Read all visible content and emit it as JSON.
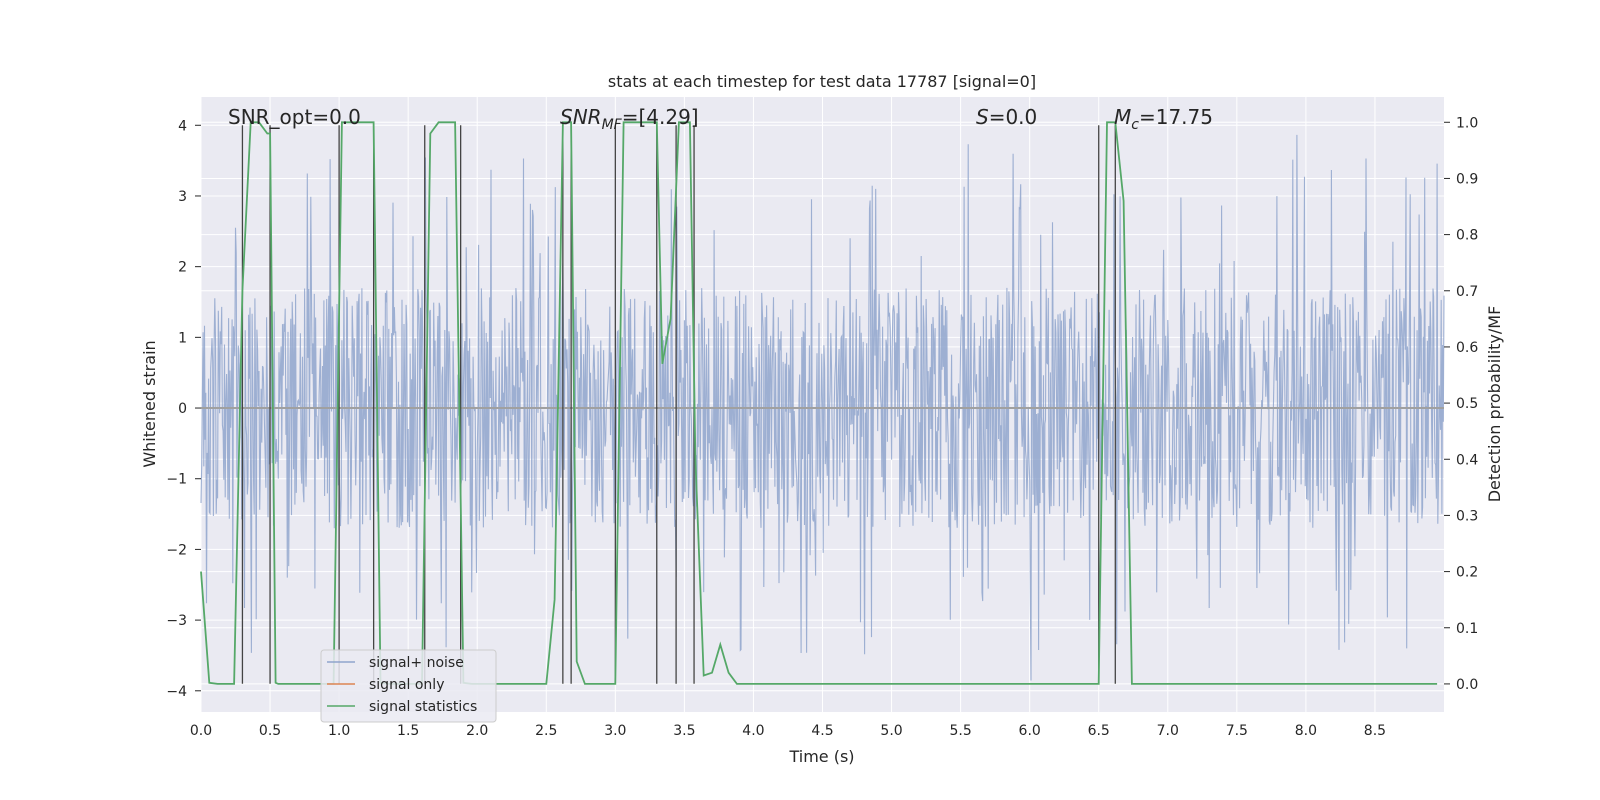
{
  "chart_data": {
    "type": "line",
    "title": "stats at each timestep for test data 17787 [signal=0]",
    "xlabel": "Time (s)",
    "ylabel": "Whitened strain",
    "ylabel_right": "Detection probability/MF",
    "xlim": [
      0,
      9.0
    ],
    "ylim": [
      -4.3,
      4.4
    ],
    "ylim_right": [
      -0.05,
      1.045
    ],
    "x_ticks": [
      "0.0",
      "0.5",
      "1.0",
      "1.5",
      "2.0",
      "2.5",
      "3.0",
      "3.5",
      "4.0",
      "4.5",
      "5.0",
      "5.5",
      "6.0",
      "6.5",
      "7.0",
      "7.5",
      "8.0",
      "8.5"
    ],
    "y_ticks": [
      "4",
      "3",
      "2",
      "1",
      "0",
      "−1",
      "−2",
      "−3",
      "−4"
    ],
    "y_ticks_right": [
      "1.0",
      "0.9",
      "0.8",
      "0.7",
      "0.6",
      "0.5",
      "0.4",
      "0.3",
      "0.2",
      "0.1",
      "0.0"
    ],
    "grid": true,
    "annotations": {
      "snr_opt": "SNR_opt=0.0",
      "snr_mf_pre": "SNR",
      "snr_mf_sub": "MF",
      "snr_mf_post": "=[4.29]",
      "s_pre": "S",
      "s_post": "=0.0",
      "mc_pre": "M",
      "mc_sub": "c",
      "mc_post": "=17.75"
    },
    "legend": {
      "position": "lower-left",
      "entries": [
        "signal+ noise",
        "signal only",
        "signal statistics"
      ]
    },
    "colors": {
      "noise": "#8fa4cc",
      "signal_only": "#dd8452",
      "statistics": "#55a868",
      "vlines": "#444444",
      "background": "#eaeaf2"
    },
    "series": [
      {
        "name": "signal statistics",
        "axis": "right",
        "x": [
          0.0,
          0.06,
          0.12,
          0.18,
          0.24,
          0.3,
          0.36,
          0.42,
          0.48,
          0.5,
          0.54,
          0.56,
          0.6,
          0.66,
          0.72,
          0.78,
          0.84,
          0.9,
          0.96,
          1.02,
          1.08,
          1.14,
          1.2,
          1.25,
          1.3,
          1.36,
          1.42,
          1.48,
          1.54,
          1.6,
          1.66,
          1.72,
          1.78,
          1.84,
          1.9,
          1.96,
          2.02,
          2.1,
          2.2,
          2.3,
          2.4,
          2.5,
          2.56,
          2.62,
          2.68,
          2.72,
          2.78,
          2.84,
          2.9,
          2.96,
          3.0,
          3.06,
          3.12,
          3.18,
          3.24,
          3.3,
          3.34,
          3.4,
          3.46,
          3.5,
          3.54,
          3.58,
          3.64,
          3.7,
          3.76,
          3.82,
          3.88,
          3.94,
          4.0,
          4.5,
          5.0,
          5.5,
          6.0,
          6.4,
          6.5,
          6.56,
          6.62,
          6.68,
          6.74,
          6.8,
          7.0,
          7.5,
          8.0,
          8.5,
          8.95
        ],
        "values": [
          0.2,
          0.002,
          0.0,
          0.0,
          0.0,
          0.7,
          1.0,
          1.0,
          0.98,
          0.98,
          0.002,
          0.0,
          0.0,
          0.0,
          0.0,
          0.0,
          0.0,
          0.0,
          0.0,
          1.0,
          1.0,
          1.0,
          1.0,
          1.0,
          0.002,
          0.0,
          0.0,
          0.0,
          0.0,
          0.0,
          0.98,
          1.0,
          1.0,
          1.0,
          0.002,
          0.0,
          0.0,
          0.0,
          0.0,
          0.0,
          0.0,
          0.0,
          0.15,
          1.0,
          1.0,
          0.04,
          0.0,
          0.0,
          0.0,
          0.0,
          0.0,
          1.0,
          1.0,
          1.0,
          1.0,
          1.0,
          0.57,
          0.65,
          1.0,
          1.0,
          1.0,
          0.4,
          0.015,
          0.02,
          0.07,
          0.02,
          0.0,
          0.0,
          0.0,
          0.0,
          0.0,
          0.0,
          0.0,
          0.0,
          0.0,
          1.0,
          1.0,
          0.86,
          0.0,
          0.0,
          0.0,
          0.0,
          0.0,
          0.0,
          0.0
        ]
      },
      {
        "name": "signal+ noise",
        "axis": "left",
        "x_range": [
          0,
          9.0
        ],
        "band": [
          -1.7,
          1.7
        ],
        "peak": [
          -4.0,
          4.0
        ]
      },
      {
        "name": "signal only",
        "axis": "left",
        "x_range": [
          0,
          9.0
        ],
        "values_constant": 0.0
      }
    ],
    "vlines": [
      0.3,
      0.5,
      1.0,
      1.25,
      1.62,
      1.88,
      2.62,
      2.68,
      3.0,
      3.3,
      3.44,
      3.57,
      6.5,
      6.62
    ]
  }
}
